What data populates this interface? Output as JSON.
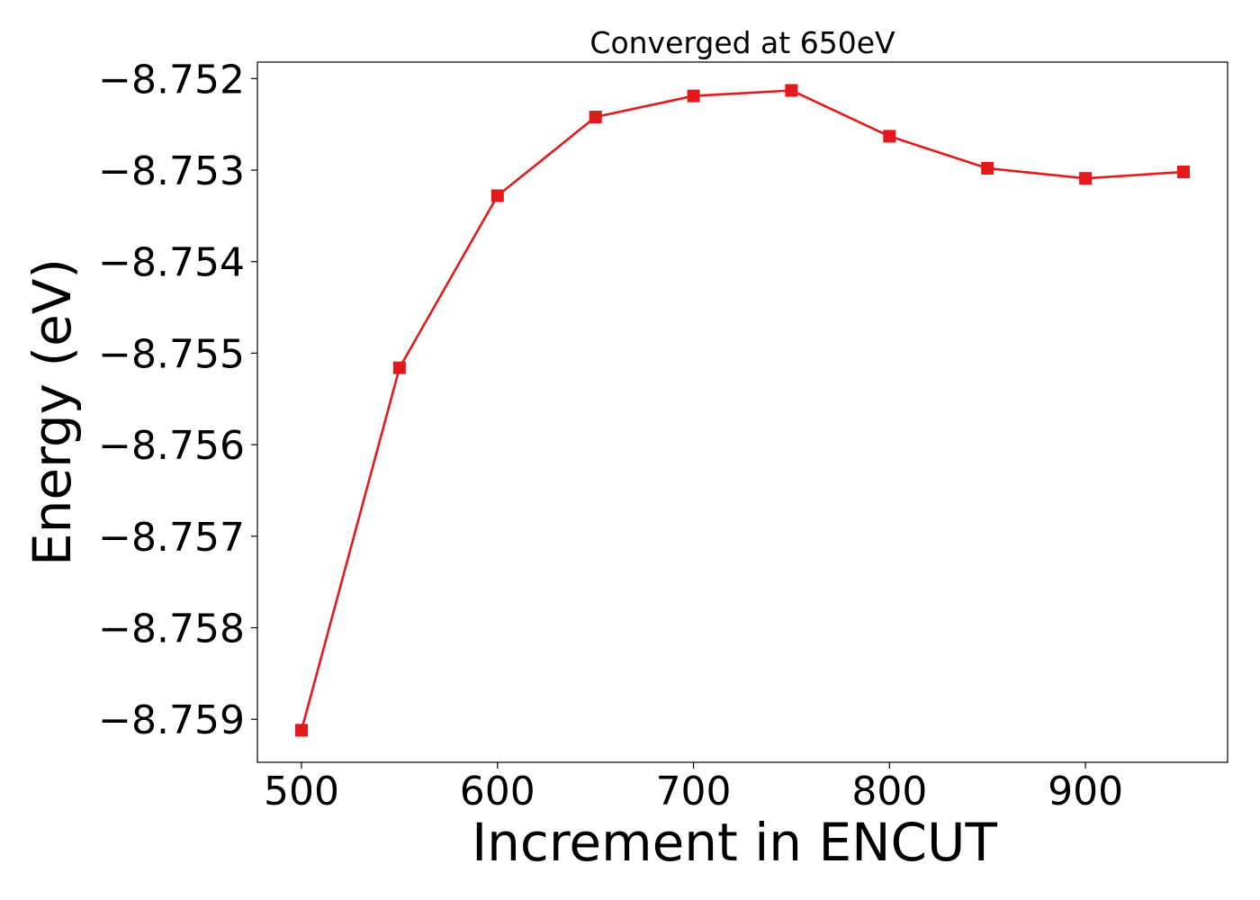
{
  "chart_data": {
    "type": "line",
    "title": "Converged at 650eV",
    "xlabel": "Increment in ENCUT",
    "ylabel": "Energy (eV)",
    "xlim": [
      477.5,
      972.5
    ],
    "ylim": [
      -8.75947,
      -8.75182
    ],
    "xticks": [
      500,
      600,
      700,
      800,
      900
    ],
    "xtick_labels": [
      "500",
      "600",
      "700",
      "800",
      "900"
    ],
    "yticks": [
      -8.752,
      -8.753,
      -8.754,
      -8.755,
      -8.756,
      -8.757,
      -8.758,
      -8.759
    ],
    "ytick_labels": [
      "−8.752",
      "−8.753",
      "−8.754",
      "−8.755",
      "−8.756",
      "−8.757",
      "−8.758",
      "−8.759"
    ],
    "grid": false,
    "series": [
      {
        "color": "#e31a1c",
        "marker": "square",
        "x": [
          500,
          550,
          600,
          650,
          700,
          750,
          800,
          850,
          900,
          950
        ],
        "y": [
          -8.75912,
          -8.75516,
          -8.75328,
          -8.75242,
          -8.75219,
          -8.75213,
          -8.75263,
          -8.75298,
          -8.75309,
          -8.75302
        ]
      }
    ]
  }
}
